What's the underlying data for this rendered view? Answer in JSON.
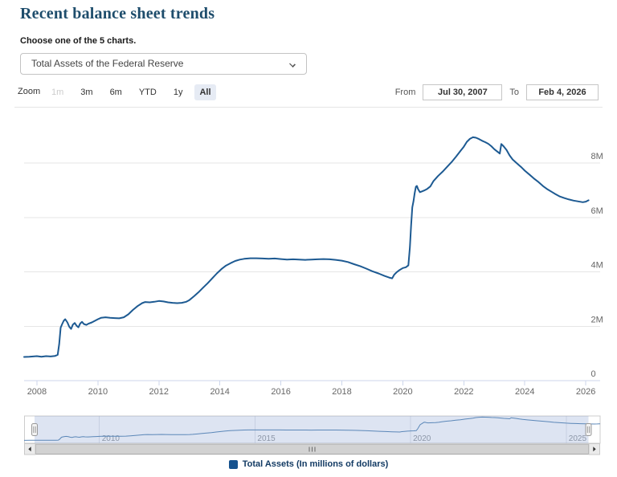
{
  "header": {
    "title": "Recent balance sheet trends",
    "subtitle": "Choose one of the 5 charts."
  },
  "chart_selector": {
    "value": "Total Assets of the Federal Reserve"
  },
  "range_selector": {
    "zoom_label": "Zoom",
    "buttons": [
      {
        "label": "1m",
        "state": "disabled"
      },
      {
        "label": "3m",
        "state": "normal"
      },
      {
        "label": "6m",
        "state": "normal"
      },
      {
        "label": "YTD",
        "state": "normal"
      },
      {
        "label": "1y",
        "state": "normal"
      },
      {
        "label": "All",
        "state": "selected"
      }
    ],
    "from_label": "From",
    "from_value": "Jul 30, 2007",
    "to_label": "To",
    "to_value": "Feb 4, 2026"
  },
  "legend": {
    "label": "Total Assets (In millions of dollars)",
    "marker_color": "#16528e"
  },
  "chart_data": {
    "type": "line",
    "title": "",
    "xlabel": "",
    "ylabel": "",
    "unit": "millions of dollars",
    "grid": "horizontal",
    "legend_position": "bottom",
    "xlim": [
      2007.58,
      2026.47
    ],
    "ylim": [
      0,
      9.92
    ],
    "x_ticks": [
      2008,
      2010,
      2012,
      2014,
      2016,
      2018,
      2020,
      2022,
      2024,
      2026
    ],
    "y_ticks": [
      {
        "v": 0,
        "label": "0"
      },
      {
        "v": 2,
        "label": "2M"
      },
      {
        "v": 4,
        "label": "4M"
      },
      {
        "v": 6,
        "label": "6M"
      },
      {
        "v": 8,
        "label": "8M"
      }
    ],
    "navigator": {
      "tick_years": [
        2010,
        2015,
        2020,
        2025
      ],
      "tick_labels": [
        "2010",
        "2015",
        "2020",
        "2025"
      ],
      "range": [
        2007.58,
        2026.09
      ],
      "selected_from": "Jul 30, 2007",
      "selected_to": "Feb 4, 2026"
    },
    "series": [
      {
        "name": "Total Assets (In millions of dollars)",
        "color": "#1d5a92",
        "navigator_color": "#5b87b8",
        "points": [
          [
            2007.58,
            0.87
          ],
          [
            2007.75,
            0.88
          ],
          [
            2008.0,
            0.9
          ],
          [
            2008.15,
            0.88
          ],
          [
            2008.3,
            0.9
          ],
          [
            2008.45,
            0.89
          ],
          [
            2008.6,
            0.91
          ],
          [
            2008.68,
            0.95
          ],
          [
            2008.73,
            1.35
          ],
          [
            2008.78,
            1.95
          ],
          [
            2008.83,
            2.08
          ],
          [
            2008.88,
            2.2
          ],
          [
            2008.93,
            2.26
          ],
          [
            2009.0,
            2.14
          ],
          [
            2009.06,
            1.98
          ],
          [
            2009.12,
            1.9
          ],
          [
            2009.18,
            2.06
          ],
          [
            2009.24,
            2.12
          ],
          [
            2009.3,
            2.02
          ],
          [
            2009.36,
            1.96
          ],
          [
            2009.42,
            2.1
          ],
          [
            2009.48,
            2.16
          ],
          [
            2009.54,
            2.08
          ],
          [
            2009.62,
            2.05
          ],
          [
            2009.7,
            2.1
          ],
          [
            2009.8,
            2.14
          ],
          [
            2009.9,
            2.2
          ],
          [
            2010.0,
            2.26
          ],
          [
            2010.1,
            2.31
          ],
          [
            2010.25,
            2.33
          ],
          [
            2010.4,
            2.31
          ],
          [
            2010.55,
            2.3
          ],
          [
            2010.7,
            2.29
          ],
          [
            2010.85,
            2.33
          ],
          [
            2011.0,
            2.44
          ],
          [
            2011.15,
            2.6
          ],
          [
            2011.3,
            2.74
          ],
          [
            2011.45,
            2.85
          ],
          [
            2011.55,
            2.89
          ],
          [
            2011.7,
            2.88
          ],
          [
            2011.85,
            2.9
          ],
          [
            2012.0,
            2.93
          ],
          [
            2012.15,
            2.91
          ],
          [
            2012.3,
            2.88
          ],
          [
            2012.45,
            2.86
          ],
          [
            2012.6,
            2.85
          ],
          [
            2012.75,
            2.86
          ],
          [
            2012.9,
            2.9
          ],
          [
            2013.0,
            2.96
          ],
          [
            2013.15,
            3.1
          ],
          [
            2013.3,
            3.25
          ],
          [
            2013.45,
            3.42
          ],
          [
            2013.6,
            3.58
          ],
          [
            2013.75,
            3.76
          ],
          [
            2013.9,
            3.94
          ],
          [
            2014.05,
            4.1
          ],
          [
            2014.2,
            4.23
          ],
          [
            2014.35,
            4.32
          ],
          [
            2014.5,
            4.4
          ],
          [
            2014.65,
            4.45
          ],
          [
            2014.8,
            4.48
          ],
          [
            2015.0,
            4.5
          ],
          [
            2015.2,
            4.5
          ],
          [
            2015.4,
            4.49
          ],
          [
            2015.6,
            4.48
          ],
          [
            2015.8,
            4.49
          ],
          [
            2016.0,
            4.47
          ],
          [
            2016.2,
            4.45
          ],
          [
            2016.4,
            4.46
          ],
          [
            2016.6,
            4.45
          ],
          [
            2016.8,
            4.44
          ],
          [
            2017.0,
            4.45
          ],
          [
            2017.2,
            4.46
          ],
          [
            2017.4,
            4.47
          ],
          [
            2017.6,
            4.46
          ],
          [
            2017.8,
            4.44
          ],
          [
            2018.0,
            4.41
          ],
          [
            2018.2,
            4.36
          ],
          [
            2018.4,
            4.28
          ],
          [
            2018.6,
            4.21
          ],
          [
            2018.8,
            4.12
          ],
          [
            2019.0,
            4.02
          ],
          [
            2019.2,
            3.94
          ],
          [
            2019.4,
            3.85
          ],
          [
            2019.55,
            3.79
          ],
          [
            2019.65,
            3.76
          ],
          [
            2019.72,
            3.9
          ],
          [
            2019.8,
            3.99
          ],
          [
            2019.9,
            4.07
          ],
          [
            2020.0,
            4.14
          ],
          [
            2020.1,
            4.17
          ],
          [
            2020.18,
            4.24
          ],
          [
            2020.23,
            4.9
          ],
          [
            2020.27,
            5.7
          ],
          [
            2020.31,
            6.37
          ],
          [
            2020.35,
            6.6
          ],
          [
            2020.39,
            6.9
          ],
          [
            2020.43,
            7.13
          ],
          [
            2020.46,
            7.16
          ],
          [
            2020.5,
            7.04
          ],
          [
            2020.56,
            6.93
          ],
          [
            2020.63,
            6.96
          ],
          [
            2020.7,
            6.99
          ],
          [
            2020.8,
            7.05
          ],
          [
            2020.9,
            7.14
          ],
          [
            2021.0,
            7.33
          ],
          [
            2021.15,
            7.52
          ],
          [
            2021.3,
            7.68
          ],
          [
            2021.45,
            7.86
          ],
          [
            2021.6,
            8.04
          ],
          [
            2021.75,
            8.24
          ],
          [
            2021.9,
            8.46
          ],
          [
            2022.0,
            8.6
          ],
          [
            2022.1,
            8.78
          ],
          [
            2022.2,
            8.89
          ],
          [
            2022.3,
            8.95
          ],
          [
            2022.4,
            8.93
          ],
          [
            2022.5,
            8.88
          ],
          [
            2022.6,
            8.82
          ],
          [
            2022.7,
            8.77
          ],
          [
            2022.8,
            8.71
          ],
          [
            2022.9,
            8.62
          ],
          [
            2023.0,
            8.51
          ],
          [
            2023.1,
            8.42
          ],
          [
            2023.18,
            8.35
          ],
          [
            2023.23,
            8.7
          ],
          [
            2023.3,
            8.62
          ],
          [
            2023.4,
            8.48
          ],
          [
            2023.5,
            8.28
          ],
          [
            2023.6,
            8.13
          ],
          [
            2023.75,
            7.98
          ],
          [
            2023.9,
            7.83
          ],
          [
            2024.0,
            7.72
          ],
          [
            2024.15,
            7.58
          ],
          [
            2024.3,
            7.43
          ],
          [
            2024.45,
            7.3
          ],
          [
            2024.6,
            7.15
          ],
          [
            2024.75,
            7.03
          ],
          [
            2024.9,
            6.93
          ],
          [
            2025.0,
            6.86
          ],
          [
            2025.15,
            6.77
          ],
          [
            2025.3,
            6.71
          ],
          [
            2025.45,
            6.66
          ],
          [
            2025.6,
            6.62
          ],
          [
            2025.75,
            6.59
          ],
          [
            2025.9,
            6.56
          ],
          [
            2026.0,
            6.58
          ],
          [
            2026.09,
            6.63
          ]
        ]
      }
    ]
  }
}
